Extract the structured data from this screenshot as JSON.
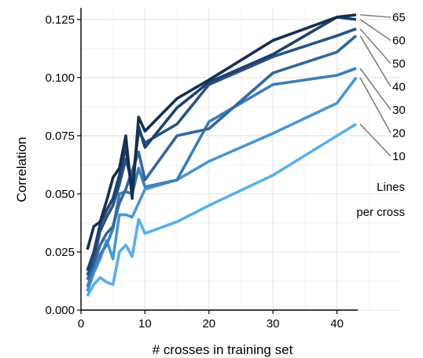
{
  "chart_data": {
    "type": "line",
    "title": "",
    "xlabel": "# crosses in training set",
    "ylabel": "Correlation",
    "xlim": [
      0,
      50
    ],
    "ylim": [
      0,
      0.13
    ],
    "x_ticks": [
      0,
      10,
      20,
      30,
      40
    ],
    "x_tick_labels": [
      "0",
      "10",
      "20",
      "30",
      "40"
    ],
    "y_ticks": [
      0,
      0.025,
      0.05,
      0.075,
      0.1,
      0.125
    ],
    "y_tick_labels": [
      "0.000",
      "0.025",
      "0.050",
      "0.075",
      "0.100",
      "0.125"
    ],
    "grid": true,
    "legend_position": "right",
    "legend_title": [
      "Lines",
      "per cross"
    ],
    "x": [
      1,
      2,
      3,
      4,
      5,
      6,
      7,
      8,
      9,
      10,
      15,
      20,
      30,
      40,
      43
    ],
    "series": [
      {
        "name": "10",
        "color": "#5AAFE8",
        "values": [
          0.006,
          0.011,
          0.014,
          0.012,
          0.011,
          0.025,
          0.028,
          0.023,
          0.039,
          0.033,
          0.038,
          0.045,
          0.058,
          0.075,
          0.08
        ]
      },
      {
        "name": "20",
        "color": "#4896D2",
        "values": [
          0.008,
          0.016,
          0.022,
          0.03,
          0.022,
          0.041,
          0.041,
          0.04,
          0.046,
          0.052,
          0.056,
          0.064,
          0.076,
          0.089,
          0.1
        ]
      },
      {
        "name": "30",
        "color": "#3C7FB8",
        "values": [
          0.01,
          0.018,
          0.024,
          0.028,
          0.035,
          0.05,
          0.051,
          0.05,
          0.061,
          0.053,
          0.056,
          0.081,
          0.097,
          0.101,
          0.104
        ]
      },
      {
        "name": "40",
        "color": "#31679E",
        "values": [
          0.013,
          0.02,
          0.028,
          0.033,
          0.036,
          0.046,
          0.052,
          0.06,
          0.068,
          0.056,
          0.075,
          0.078,
          0.102,
          0.111,
          0.118
        ]
      },
      {
        "name": "50",
        "color": "#285485",
        "values": [
          0.015,
          0.022,
          0.034,
          0.04,
          0.045,
          0.054,
          0.065,
          0.055,
          0.077,
          0.072,
          0.08,
          0.097,
          0.109,
          0.118,
          0.121
        ]
      },
      {
        "name": "60",
        "color": "#1F416C",
        "values": [
          0.017,
          0.025,
          0.037,
          0.043,
          0.048,
          0.058,
          0.07,
          0.051,
          0.079,
          0.07,
          0.087,
          0.098,
          0.11,
          0.126,
          0.125
        ]
      },
      {
        "name": "65",
        "color": "#152F52",
        "values": [
          0.026,
          0.036,
          0.038,
          0.047,
          0.057,
          0.061,
          0.075,
          0.048,
          0.083,
          0.077,
          0.091,
          0.099,
          0.116,
          0.126,
          0.127
        ]
      }
    ]
  }
}
